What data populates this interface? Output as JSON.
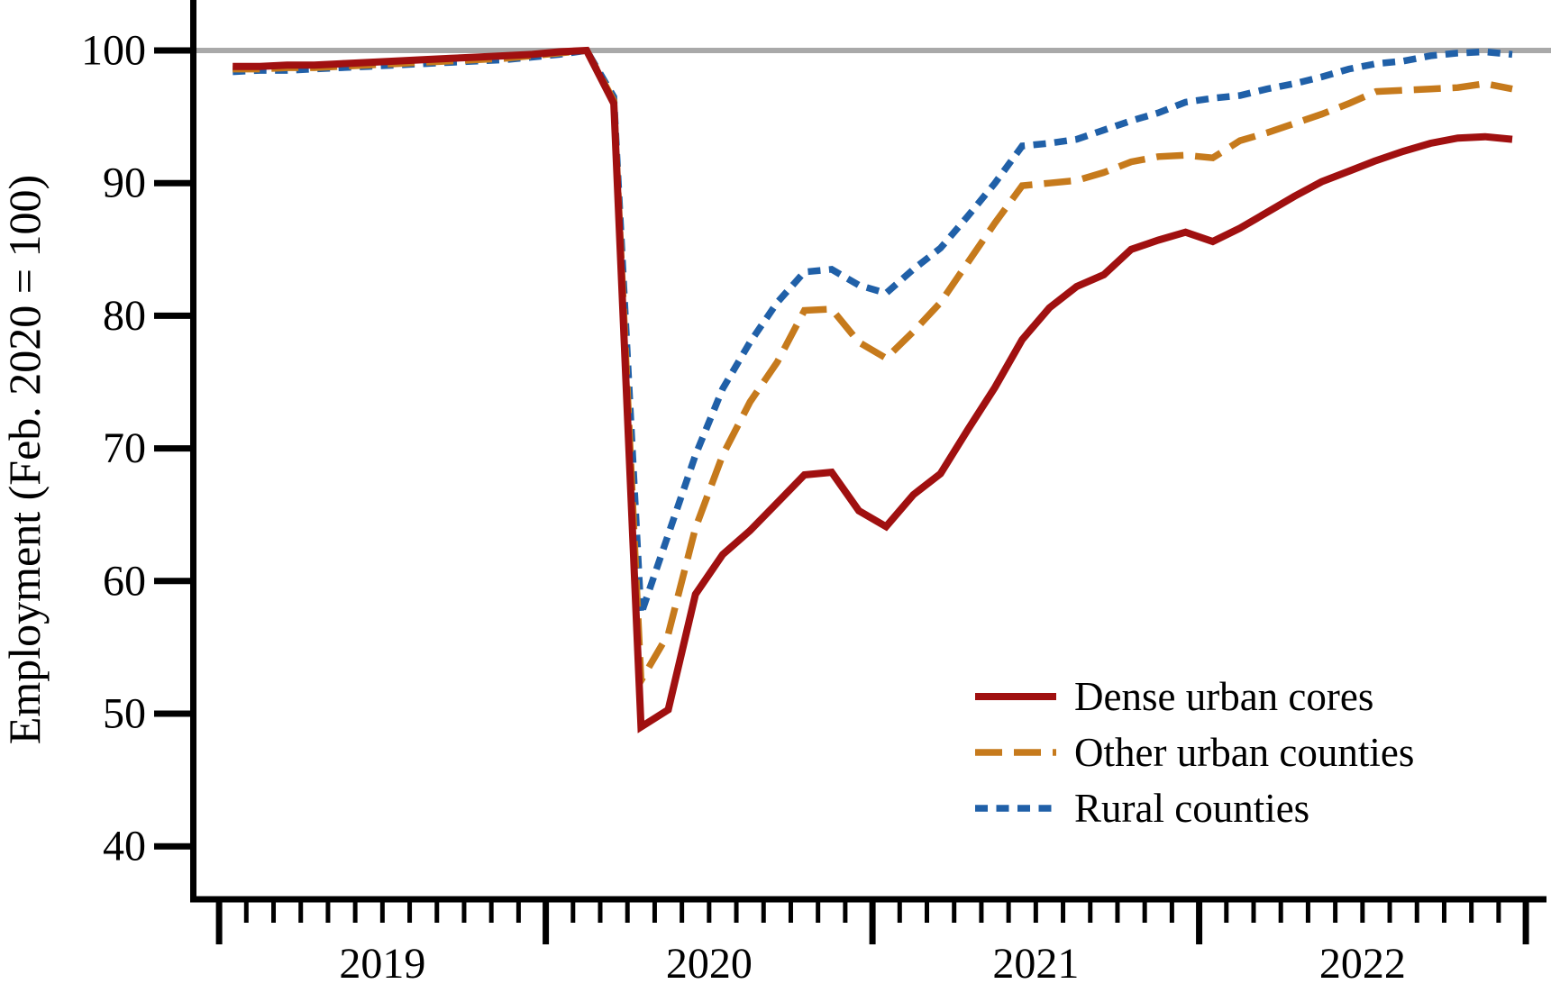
{
  "figure": {
    "background": "#ffffff",
    "axis_color": "#000000",
    "reference_line": {
      "value": 100,
      "color": "#a9a9a9"
    }
  },
  "chart_data": {
    "type": "line",
    "title": "",
    "xlabel": "",
    "ylabel": "Employment (Feb. 2020 = 100)",
    "ylim": [
      36,
      103.5
    ],
    "yticks": [
      40,
      50,
      60,
      70,
      80,
      90,
      100
    ],
    "x_tick_interval": "monthly",
    "x_major_tick": "yearly (January)",
    "x_year_labels": [
      "2019",
      "2020",
      "2021",
      "2022"
    ],
    "grid": false,
    "legend_position": "lower right",
    "reference_line_y": 100,
    "months": [
      "2019-01",
      "2019-02",
      "2019-03",
      "2019-04",
      "2019-05",
      "2019-06",
      "2019-07",
      "2019-08",
      "2019-09",
      "2019-10",
      "2019-11",
      "2019-12",
      "2020-01",
      "2020-02",
      "2020-03",
      "2020-04",
      "2020-05",
      "2020-06",
      "2020-07",
      "2020-08",
      "2020-09",
      "2020-10",
      "2020-11",
      "2020-12",
      "2021-01",
      "2021-02",
      "2021-03",
      "2021-04",
      "2021-05",
      "2021-06",
      "2021-07",
      "2021-08",
      "2021-09",
      "2021-10",
      "2021-11",
      "2021-12",
      "2022-01",
      "2022-02",
      "2022-03",
      "2022-04",
      "2022-05",
      "2022-06",
      "2022-07",
      "2022-08",
      "2022-09",
      "2022-10",
      "2022-11",
      "2022-12"
    ],
    "series": [
      {
        "name": "Dense urban cores",
        "color": "#a01010",
        "style": "solid",
        "stroke_width": 8,
        "values": [
          98.8,
          98.8,
          98.9,
          98.9,
          99.0,
          99.1,
          99.2,
          99.3,
          99.4,
          99.5,
          99.6,
          99.7,
          99.9,
          100.0,
          96.0,
          49.0,
          50.3,
          59.0,
          62.0,
          63.8,
          65.9,
          68.0,
          68.2,
          65.3,
          64.1,
          66.5,
          68.1,
          71.4,
          74.6,
          78.2,
          80.6,
          82.2,
          83.1,
          85.0,
          85.7,
          86.3,
          85.6,
          86.6,
          87.8,
          89.0,
          90.1,
          90.9,
          91.7,
          92.4,
          93.0,
          93.4,
          93.5,
          93.3
        ]
      },
      {
        "name": "Other urban counties",
        "color": "#c67a1c",
        "style": "longdash",
        "stroke_width": 7.5,
        "values": [
          98.6,
          98.6,
          98.7,
          98.7,
          98.8,
          98.9,
          99.0,
          99.1,
          99.2,
          99.3,
          99.4,
          99.6,
          99.8,
          100.0,
          96.2,
          52.5,
          56.0,
          64.0,
          69.5,
          73.5,
          76.5,
          80.4,
          80.5,
          78.0,
          76.8,
          78.8,
          81.0,
          84.0,
          87.0,
          89.8,
          90.0,
          90.2,
          90.8,
          91.6,
          92.0,
          92.1,
          91.9,
          93.2,
          93.8,
          94.5,
          95.2,
          96.0,
          96.9,
          97.0,
          97.1,
          97.2,
          97.5,
          97.1
        ]
      },
      {
        "name": "Rural counties",
        "color": "#2060a8",
        "style": "dash",
        "stroke_width": 7.5,
        "values": [
          98.4,
          98.5,
          98.5,
          98.6,
          98.7,
          98.8,
          98.9,
          99.0,
          99.1,
          99.2,
          99.3,
          99.5,
          99.7,
          100.0,
          96.5,
          57.5,
          63.5,
          69.5,
          74.5,
          78.0,
          81.0,
          83.3,
          83.5,
          82.3,
          81.7,
          83.5,
          85.1,
          87.5,
          90.0,
          92.8,
          93.0,
          93.3,
          94.0,
          94.7,
          95.3,
          96.1,
          96.4,
          96.6,
          97.1,
          97.5,
          98.0,
          98.6,
          99.0,
          99.2,
          99.6,
          99.8,
          99.9,
          99.7
        ]
      }
    ]
  }
}
